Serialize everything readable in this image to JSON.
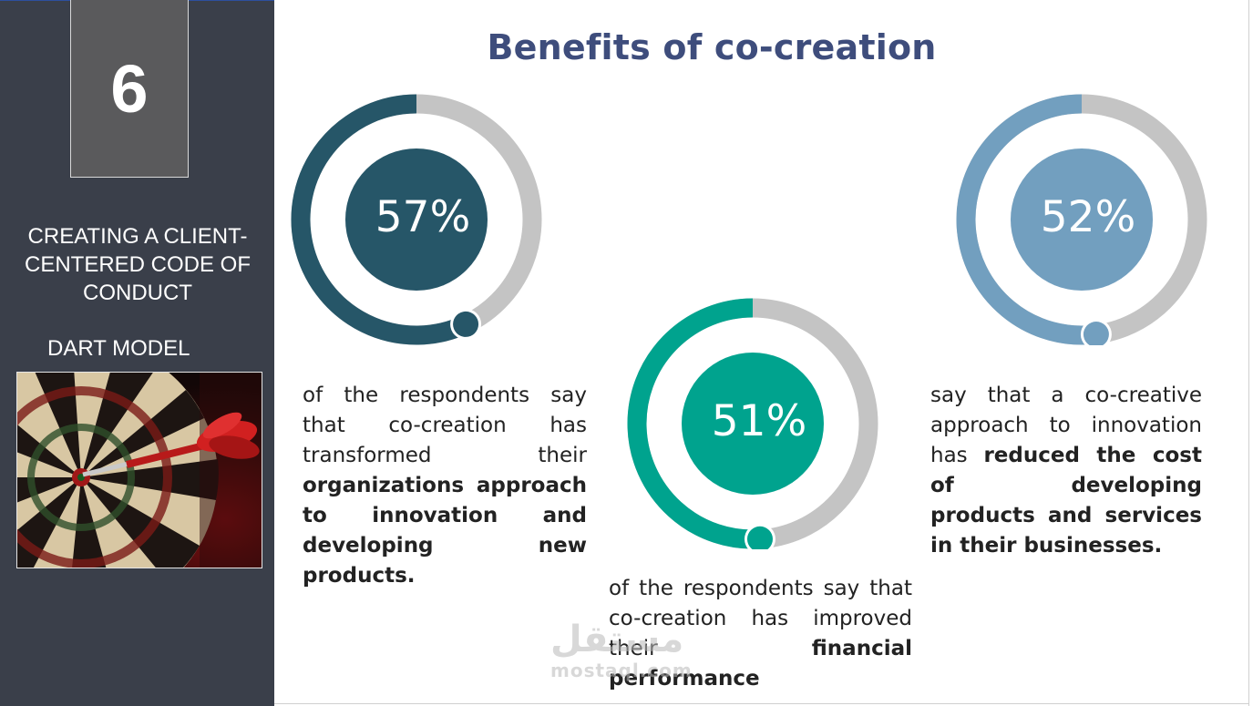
{
  "sidebar": {
    "slide_number": "6",
    "title": "CREATING A CLIENT-CENTERED CODE OF CONDUCT",
    "model_label": "DART MODEL",
    "image_icon": "dartboard-icon"
  },
  "main": {
    "title": "Benefits of co-creation"
  },
  "stats": [
    {
      "percent": "57%",
      "value": 57,
      "color": "#265668",
      "text_plain": "of the respondents say that co-creation has transformed their",
      "text_bold": "organizations approach to innovation and developing new products."
    },
    {
      "percent": "51%",
      "value": 51,
      "color": "#00a38e",
      "text_plain": "of the respondents say that co-creation has improved their",
      "text_bold": "financial performance"
    },
    {
      "percent": "52%",
      "value": 52,
      "color": "#729fbf",
      "text_plain": "say that a co-creative approach to innovation has",
      "text_bold": "reduced the cost of developing products and services in their businesses."
    }
  ],
  "ring_track_color": "#c4c4c4",
  "watermark": {
    "arabic": "مستقل",
    "latin": "mostaql.com"
  }
}
